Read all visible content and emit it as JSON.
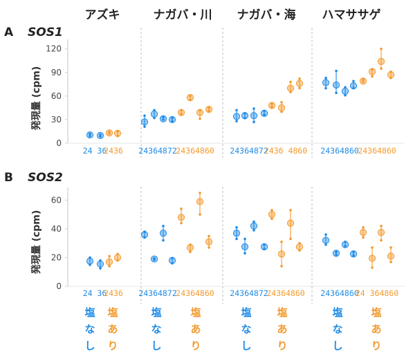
{
  "colors": {
    "blue": "#1f8be6",
    "orange": "#f39a2e",
    "axis": "#cfcfcf"
  },
  "groups": [
    "アズキ",
    "ナガバ・川",
    "ナガバ・海",
    "ハマササゲ"
  ],
  "panel_labels": [
    "A",
    "B"
  ],
  "gene_names": [
    "SOS1",
    "SOS2"
  ],
  "y_axis_label": "発現量 (cpm)",
  "legend": {
    "no_salt": [
      "塩",
      "な",
      "し"
    ],
    "salt": [
      "塩",
      "あ",
      "り"
    ]
  },
  "chart_data": [
    {
      "type": "scatter",
      "panel": "A",
      "gene": "SOS1",
      "ylabel": "発現量 (cpm)",
      "yticks": [
        0,
        30,
        60,
        90,
        120
      ],
      "ylim": [
        0,
        125
      ],
      "grid": false,
      "x_tick_labels": [
        {
          "blue": "24 36",
          "orange": "2436"
        },
        {
          "blue": "24364872",
          "orange": "24364860"
        },
        {
          "blue": "24364872",
          "orange": "2436 4860"
        },
        {
          "blue": "24364860",
          "orange": "24364860"
        }
      ],
      "groups": [
        {
          "name": "アズキ",
          "no_salt": [
            {
              "x": "24",
              "y": 10.5,
              "reps": [
                9,
                12
              ]
            },
            {
              "x": "36",
              "y": 9.8,
              "reps": [
                8.5,
                11
              ]
            }
          ],
          "salt": [
            {
              "x": "24",
              "y": 13,
              "reps": [
                12,
                14.5
              ]
            },
            {
              "x": "36",
              "y": 12.5,
              "reps": [
                9,
                15
              ]
            }
          ]
        },
        {
          "name": "ナガバ・川",
          "no_salt": [
            {
              "x": "24",
              "y": 27,
              "reps": [
                21,
                35
              ]
            },
            {
              "x": "36",
              "y": 37,
              "reps": [
                32,
                42
              ]
            },
            {
              "x": "48",
              "y": 31,
              "reps": [
                30,
                33
              ]
            },
            {
              "x": "72",
              "y": 30,
              "reps": [
                28,
                32
              ]
            }
          ],
          "salt": [
            {
              "x": "24",
              "y": 39,
              "reps": [
                37,
                42
              ]
            },
            {
              "x": "36",
              "y": 58,
              "reps": [
                55,
                60
              ]
            },
            {
              "x": "48",
              "y": 39,
              "reps": [
                31,
                42
              ]
            },
            {
              "x": "60",
              "y": 43,
              "reps": [
                41,
                45
              ]
            }
          ]
        },
        {
          "name": "ナガバ・海",
          "no_salt": [
            {
              "x": "24",
              "y": 34,
              "reps": [
                28,
                42
              ]
            },
            {
              "x": "36",
              "y": 35,
              "reps": [
                32,
                38
              ]
            },
            {
              "x": "48",
              "y": 35,
              "reps": [
                27,
                44
              ]
            },
            {
              "x": "72",
              "y": 38,
              "reps": [
                36,
                41
              ]
            }
          ],
          "salt": [
            {
              "x": "24",
              "y": 48,
              "reps": [
                46,
                50
              ]
            },
            {
              "x": "36",
              "y": 45,
              "reps": [
                40,
                52
              ]
            },
            {
              "x": "48",
              "y": 70,
              "reps": [
                65,
                78
              ]
            },
            {
              "x": "60",
              "y": 76,
              "reps": [
                70,
                82
              ]
            }
          ]
        },
        {
          "name": "ハマササゲ",
          "no_salt": [
            {
              "x": "24",
              "y": 77,
              "reps": [
                70,
                83
              ]
            },
            {
              "x": "36",
              "y": 74,
              "reps": [
                64,
                92
              ]
            },
            {
              "x": "48",
              "y": 66,
              "reps": [
                61,
                71
              ]
            },
            {
              "x": "60",
              "y": 73,
              "reps": [
                70,
                79
              ]
            }
          ],
          "salt": [
            {
              "x": "24",
              "y": 79,
              "reps": [
                78,
                81
              ]
            },
            {
              "x": "36",
              "y": 91,
              "reps": [
                85,
                94
              ]
            },
            {
              "x": "48",
              "y": 104,
              "reps": [
                95,
                120
              ]
            },
            {
              "x": "60",
              "y": 87,
              "reps": [
                83,
                91
              ]
            }
          ]
        }
      ]
    },
    {
      "type": "scatter",
      "panel": "B",
      "gene": "SOS2",
      "ylabel": "発現量 (cpm)",
      "yticks": [
        0,
        20,
        40,
        60
      ],
      "ylim": [
        0,
        65
      ],
      "grid": false,
      "x_tick_labels": [
        {
          "blue": "24 36",
          "orange": "2436"
        },
        {
          "blue": "24364872",
          "orange": "24364860"
        },
        {
          "blue": "24364872",
          "orange": "24364860"
        },
        {
          "blue": "24364860",
          "orange": "24 364860"
        }
      ],
      "groups": [
        {
          "name": "アズキ",
          "no_salt": [
            {
              "x": "24",
              "y": 17.5,
              "reps": [
                15,
                20
              ]
            },
            {
              "x": "36",
              "y": 15.5,
              "reps": [
                12.5,
                18
              ]
            }
          ],
          "salt": [
            {
              "x": "24",
              "y": 17,
              "reps": [
                14,
                21
              ]
            },
            {
              "x": "36",
              "y": 20,
              "reps": [
                18,
                22.5
              ]
            }
          ]
        },
        {
          "name": "ナガバ・川",
          "no_salt": [
            {
              "x": "24",
              "y": 36,
              "reps": [
                34,
                38
              ]
            },
            {
              "x": "36",
              "y": 19,
              "reps": [
                18.5,
                19.5
              ]
            },
            {
              "x": "48",
              "y": 37,
              "reps": [
                32,
                42
              ]
            },
            {
              "x": "72",
              "y": 18,
              "reps": [
                16,
                19.5
              ]
            }
          ],
          "salt": [
            {
              "x": "24",
              "y": 48,
              "reps": [
                44,
                54
              ]
            },
            {
              "x": "36",
              "y": 27,
              "reps": [
                24,
                29
              ]
            },
            {
              "x": "48",
              "y": 59,
              "reps": [
                50,
                65
              ]
            },
            {
              "x": "60",
              "y": 31,
              "reps": [
                27,
                35
              ]
            }
          ]
        },
        {
          "name": "ナガバ・海",
          "no_salt": [
            {
              "x": "24",
              "y": 37,
              "reps": [
                33,
                41
              ]
            },
            {
              "x": "36",
              "y": 27.5,
              "reps": [
                23,
                33
              ]
            },
            {
              "x": "48",
              "y": 42,
              "reps": [
                39,
                45
              ]
            },
            {
              "x": "72",
              "y": 27.5,
              "reps": [
                26,
                29
              ]
            }
          ],
          "salt": [
            {
              "x": "24",
              "y": 50,
              "reps": [
                47,
                53
              ]
            },
            {
              "x": "36",
              "y": 22.5,
              "reps": [
                14,
                31
              ]
            },
            {
              "x": "48",
              "y": 44,
              "reps": [
                33,
                53
              ]
            },
            {
              "x": "60",
              "y": 27.5,
              "reps": [
                25,
                30
              ]
            }
          ]
        },
        {
          "name": "ハマササゲ",
          "no_salt": [
            {
              "x": "24",
              "y": 32,
              "reps": [
                29,
                36
              ]
            },
            {
              "x": "36",
              "y": 23,
              "reps": [
                22,
                24
              ]
            },
            {
              "x": "48",
              "y": 29,
              "reps": [
                28,
                31
              ]
            },
            {
              "x": "60",
              "y": 22.5,
              "reps": [
                21.5,
                24
              ]
            }
          ],
          "salt": [
            {
              "x": "24",
              "y": 37.5,
              "reps": [
                34,
                41
              ]
            },
            {
              "x": "36",
              "y": 19.5,
              "reps": [
                13,
                27
              ]
            },
            {
              "x": "48",
              "y": 37.5,
              "reps": [
                32,
                42
              ]
            },
            {
              "x": "60",
              "y": 21,
              "reps": [
                17,
                27
              ]
            }
          ]
        }
      ]
    }
  ]
}
